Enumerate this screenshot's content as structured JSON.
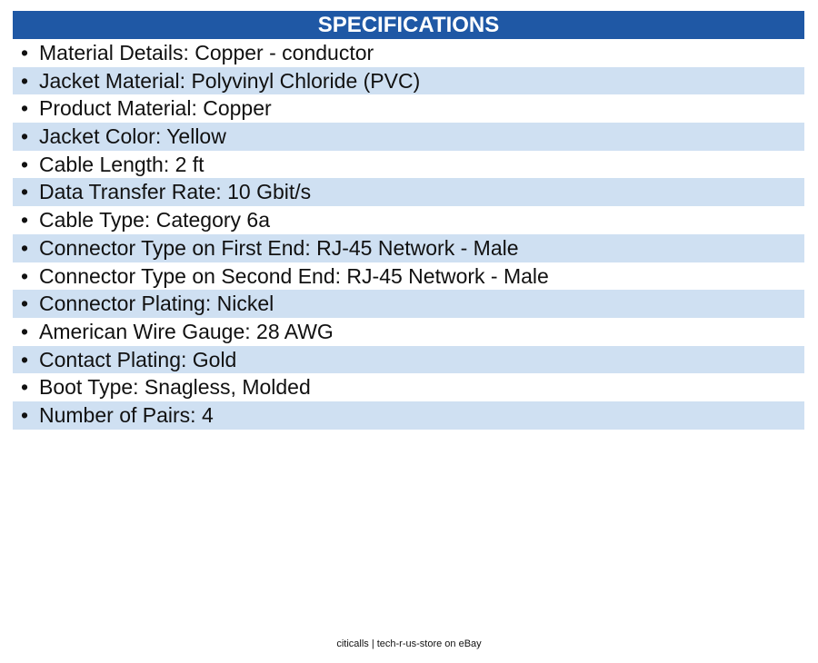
{
  "header": {
    "title": "SPECIFICATIONS"
  },
  "specs": [
    "Material Details: Copper - conductor",
    "Jacket Material: Polyvinyl Chloride (PVC)",
    "Product Material: Copper",
    "Jacket Color: Yellow",
    "Cable Length: 2 ft",
    "Data Transfer Rate: 10 Gbit/s",
    "Cable Type: Category 6a",
    "Connector Type on First End: RJ-45 Network - Male",
    "Connector Type on Second End: RJ-45 Network - Male",
    "Connector Plating: Nickel",
    "American Wire Gauge: 28 AWG",
    "Contact Plating: Gold",
    "Boot Type: Snagless, Molded",
    "Number of Pairs: 4"
  ],
  "footer": {
    "text": "citicalls | tech-r-us-store on eBay"
  }
}
